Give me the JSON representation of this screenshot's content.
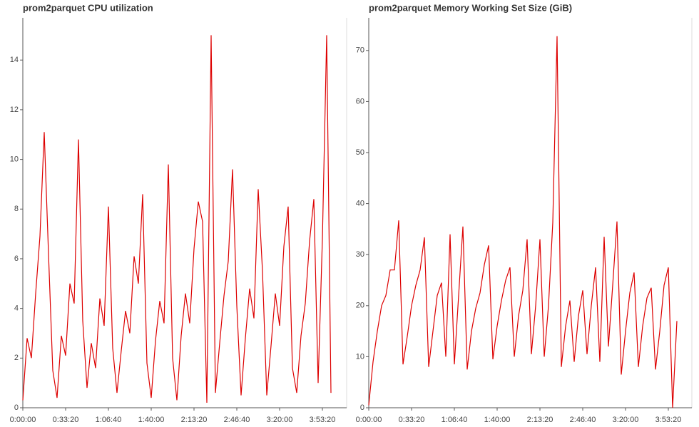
{
  "chart_data": [
    {
      "type": "line",
      "title": "prom2parquet CPU utilization",
      "x": [
        0,
        200,
        400,
        600,
        800,
        1000,
        1200,
        1400,
        1600,
        1800,
        2000,
        2200,
        2400,
        2600,
        2800,
        3000,
        3200,
        3400,
        3600,
        3800,
        4000,
        4200,
        4400,
        4600,
        4800,
        5000,
        5200,
        5400,
        5600,
        5800,
        6000,
        6200,
        6400,
        6600,
        6800,
        7000,
        7200,
        7400,
        7600,
        7800,
        8000,
        8200,
        8400,
        8600,
        8800,
        9000,
        9200,
        9400,
        9600,
        9800,
        10000,
        10200,
        10400,
        10600,
        10800,
        11000,
        11200,
        11400,
        11600,
        11800,
        12000,
        12200,
        12400,
        12600,
        12800,
        13000,
        13200,
        13400,
        13600,
        13800,
        14000,
        14200,
        14400
      ],
      "series": [
        {
          "color": "#dd0000",
          "values": [
            0.3,
            2.8,
            2.0,
            4.6,
            6.9,
            11.1,
            6.2,
            1.5,
            0.4,
            2.9,
            2.1,
            5.0,
            4.2,
            10.8,
            3.5,
            0.8,
            2.6,
            1.6,
            4.4,
            3.3,
            8.1,
            2.4,
            0.6,
            2.3,
            3.9,
            3.0,
            6.1,
            5.0,
            8.6,
            1.8,
            0.4,
            2.7,
            4.3,
            3.4,
            9.8,
            2.0,
            0.3,
            2.9,
            4.6,
            3.4,
            6.4,
            8.3,
            7.5,
            0.2,
            15.0,
            0.6,
            2.6,
            4.5,
            5.9,
            9.6,
            4.1,
            0.5,
            2.8,
            4.8,
            3.6,
            8.8,
            5.5,
            0.5,
            2.5,
            4.6,
            3.3,
            6.5,
            8.1,
            1.6,
            0.6,
            2.9,
            4.2,
            6.7,
            8.4,
            1.0,
            6.8,
            15.0,
            0.6
          ]
        }
      ],
      "xlim": [
        0,
        15133
      ],
      "ylim": [
        0,
        15.7
      ],
      "xticks": [
        {
          "value": 0,
          "label": "0:00:00"
        },
        {
          "value": 2000,
          "label": "0:33:20"
        },
        {
          "value": 4000,
          "label": "1:06:40"
        },
        {
          "value": 6000,
          "label": "1:40:00"
        },
        {
          "value": 8000,
          "label": "2:13:20"
        },
        {
          "value": 10000,
          "label": "2:46:40"
        },
        {
          "value": 12000,
          "label": "3:20:00"
        },
        {
          "value": 14000,
          "label": "3:53:20"
        }
      ],
      "yticks": [
        0,
        2,
        4,
        6,
        8,
        10,
        12,
        14
      ]
    },
    {
      "type": "line",
      "title": "prom2parquet Memory Working Set Size (GiB)",
      "x": [
        0,
        200,
        400,
        600,
        800,
        1000,
        1200,
        1400,
        1600,
        1800,
        2000,
        2200,
        2400,
        2600,
        2800,
        3000,
        3200,
        3400,
        3600,
        3800,
        4000,
        4200,
        4400,
        4600,
        4800,
        5000,
        5200,
        5400,
        5600,
        5800,
        6000,
        6200,
        6400,
        6600,
        6800,
        7000,
        7200,
        7400,
        7600,
        7800,
        8000,
        8200,
        8400,
        8600,
        8800,
        9000,
        9200,
        9400,
        9600,
        9800,
        10000,
        10200,
        10400,
        10600,
        10800,
        11000,
        11200,
        11400,
        11600,
        11800,
        12000,
        12200,
        12400,
        12600,
        12800,
        13000,
        13200,
        13400,
        13600,
        13800,
        14000,
        14200,
        14400
      ],
      "series": [
        {
          "color": "#dd0000",
          "values": [
            0.5,
            9,
            15,
            20,
            22,
            27,
            27,
            36.7,
            8.5,
            14,
            20,
            24,
            27,
            33.4,
            8,
            15,
            22,
            24.5,
            10,
            34,
            8.5,
            22,
            35.5,
            7.5,
            15,
            19.5,
            22.5,
            28,
            31.8,
            9.5,
            16,
            21,
            25,
            27.5,
            10,
            18,
            23,
            33,
            10.5,
            20,
            33,
            10,
            20,
            36.3,
            72.8,
            8,
            16,
            21,
            9,
            18,
            23,
            10.5,
            20,
            27.5,
            9,
            33.5,
            12,
            24,
            36.5,
            6.5,
            15,
            22.5,
            26.5,
            8,
            16,
            21.5,
            23.5,
            7.5,
            15,
            24,
            27.5,
            0,
            17
          ]
        }
      ],
      "xlim": [
        0,
        15100
      ],
      "ylim": [
        0,
        76.4
      ],
      "xticks": [
        {
          "value": 0,
          "label": "0:00:00"
        },
        {
          "value": 2000,
          "label": "0:33:20"
        },
        {
          "value": 4000,
          "label": "1:06:40"
        },
        {
          "value": 6000,
          "label": "1:40:00"
        },
        {
          "value": 8000,
          "label": "2:13:20"
        },
        {
          "value": 10000,
          "label": "2:46:40"
        },
        {
          "value": 12000,
          "label": "3:20:00"
        },
        {
          "value": 14000,
          "label": "3:53:20"
        }
      ],
      "yticks": [
        0,
        10,
        20,
        30,
        40,
        50,
        60,
        70
      ]
    }
  ]
}
